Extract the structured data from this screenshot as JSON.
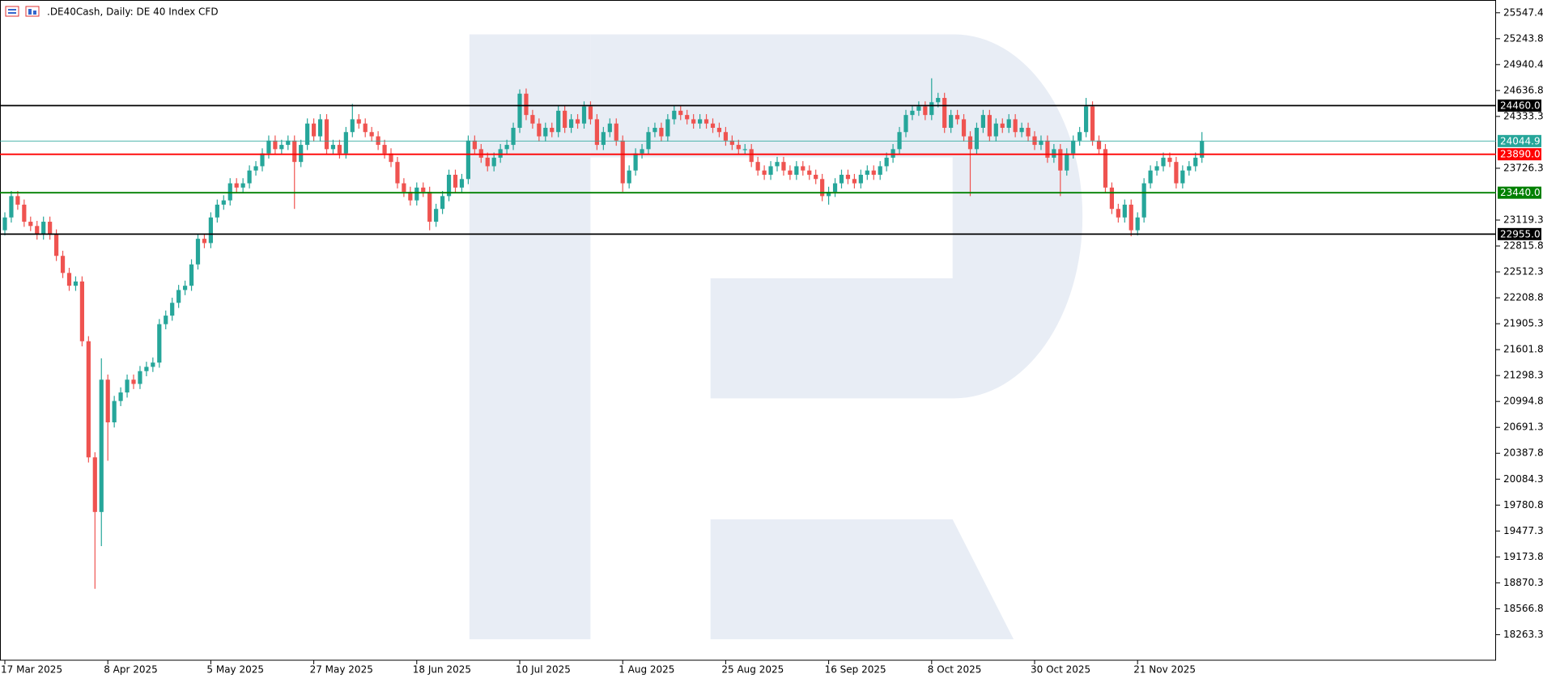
{
  "chart_data": {
    "type": "candlestick",
    "title": ".DE40Cash, Daily:  DE 40 Index CFD",
    "categories": [
      "17 Mar 2025",
      null,
      null,
      null,
      null,
      null,
      null,
      null,
      null,
      null,
      null,
      null,
      null,
      null,
      null,
      null,
      "8 Apr 2025",
      null,
      null,
      null,
      null,
      null,
      null,
      null,
      null,
      null,
      null,
      null,
      null,
      null,
      null,
      null,
      "5 May 2025",
      null,
      null,
      null,
      null,
      null,
      null,
      null,
      null,
      null,
      null,
      null,
      null,
      null,
      null,
      null,
      "27 May 2025",
      null,
      null,
      null,
      null,
      null,
      null,
      null,
      null,
      null,
      null,
      null,
      null,
      null,
      null,
      null,
      "18 Jun 2025",
      null,
      null,
      null,
      null,
      null,
      null,
      null,
      null,
      null,
      null,
      null,
      null,
      null,
      null,
      null,
      "10 Jul 2025",
      null,
      null,
      null,
      null,
      null,
      null,
      null,
      null,
      null,
      null,
      null,
      null,
      null,
      null,
      null,
      "1 Aug 2025",
      null,
      null,
      null,
      null,
      null,
      null,
      null,
      null,
      null,
      null,
      null,
      null,
      null,
      null,
      null,
      "25 Aug 2025",
      null,
      null,
      null,
      null,
      null,
      null,
      null,
      null,
      null,
      null,
      null,
      null,
      null,
      null,
      null,
      "16 Sep 2025",
      null,
      null,
      null,
      null,
      null,
      null,
      null,
      null,
      null,
      null,
      null,
      null,
      null,
      null,
      null,
      "8 Oct 2025",
      null,
      null,
      null,
      null,
      null,
      null,
      null,
      null,
      null,
      null,
      null,
      null,
      null,
      null,
      null,
      "30 Oct 2025",
      null,
      null,
      null,
      null,
      null,
      null,
      null,
      null,
      null,
      null,
      null,
      null,
      null,
      null,
      null,
      "21 Nov 2025",
      null,
      null,
      null,
      null,
      null,
      null,
      null,
      null,
      null,
      null
    ],
    "open": [
      23000,
      23150,
      23400,
      23300,
      23100,
      23050,
      22950,
      23100,
      22950,
      22700,
      22500,
      22350,
      22400,
      21700,
      20340,
      19700,
      21250,
      20750,
      21000,
      21100,
      21250,
      21200,
      21350,
      21400,
      21450,
      21900,
      22000,
      22150,
      22300,
      22350,
      22600,
      22900,
      22850,
      23150,
      23300,
      23350,
      23550,
      23500,
      23550,
      23700,
      23750,
      23900,
      24050,
      23950,
      24000,
      24050,
      23800,
      24000,
      24250,
      24100,
      24300,
      23950,
      24000,
      23900,
      24150,
      24300,
      24250,
      24150,
      24100,
      24000,
      23900,
      23800,
      23550,
      23450,
      23350,
      23500,
      23450,
      23100,
      23250,
      23400,
      23650,
      23500,
      23600,
      24050,
      23950,
      23850,
      23750,
      23850,
      23950,
      24000,
      24200,
      24600,
      24350,
      24250,
      24100,
      24200,
      24150,
      24400,
      24200,
      24300,
      24250,
      24450,
      24300,
      24000,
      24150,
      24250,
      24050,
      23550,
      23700,
      23900,
      23950,
      24150,
      24200,
      24100,
      24300,
      24400,
      24350,
      24300,
      24250,
      24300,
      24250,
      24200,
      24150,
      24050,
      24000,
      23950,
      23950,
      23800,
      23700,
      23650,
      23750,
      23800,
      23700,
      23650,
      23750,
      23700,
      23650,
      23600,
      23400,
      23450,
      23550,
      23650,
      23600,
      23550,
      23650,
      23700,
      23650,
      23750,
      23850,
      23950,
      24150,
      24350,
      24400,
      24450,
      24350,
      24500,
      24550,
      24200,
      24350,
      24300,
      24100,
      23950,
      24200,
      24350,
      24100,
      24250,
      24200,
      24300,
      24150,
      24200,
      24100,
      24000,
      24050,
      23850,
      23950,
      23700,
      23900,
      24050,
      24150,
      24450,
      24050,
      23950,
      23500,
      23250,
      23150,
      23300,
      23000,
      23150,
      23550,
      23700,
      23750,
      23850,
      23800,
      23550,
      23700,
      23750,
      23850
    ],
    "high": [
      23210,
      23460,
      23460,
      23360,
      23160,
      23110,
      23160,
      23160,
      23010,
      22760,
      22560,
      22460,
      22460,
      21760,
      20400,
      21500,
      21310,
      21060,
      21160,
      21310,
      21310,
      21410,
      21460,
      21510,
      21960,
      22060,
      22210,
      22360,
      22410,
      22660,
      22960,
      22960,
      23210,
      23360,
      23410,
      23610,
      23610,
      23610,
      23760,
      23810,
      23960,
      24110,
      24110,
      24060,
      24110,
      24110,
      24060,
      24310,
      24310,
      24360,
      24360,
      24060,
      24060,
      24210,
      24480,
      24360,
      24310,
      24210,
      24160,
      24060,
      23960,
      23860,
      23610,
      23510,
      23560,
      23560,
      23510,
      23310,
      23460,
      23710,
      23710,
      23660,
      24110,
      24110,
      24010,
      23910,
      23910,
      24010,
      24060,
      24260,
      24650,
      24660,
      24410,
      24310,
      24260,
      24260,
      24460,
      24460,
      24360,
      24360,
      24510,
      24510,
      24360,
      24210,
      24310,
      24310,
      24110,
      23760,
      23960,
      24010,
      24210,
      24260,
      24260,
      24360,
      24460,
      24460,
      24410,
      24360,
      24360,
      24360,
      24310,
      24260,
      24210,
      24110,
      24060,
      24010,
      24010,
      23860,
      23760,
      23810,
      23860,
      23860,
      23760,
      23810,
      23810,
      23760,
      23710,
      23660,
      23510,
      23610,
      23710,
      23710,
      23660,
      23710,
      23760,
      23760,
      23810,
      23910,
      24010,
      24210,
      24410,
      24460,
      24510,
      24510,
      24780,
      24610,
      24610,
      24410,
      24410,
      24360,
      24160,
      24260,
      24410,
      24410,
      24310,
      24310,
      24360,
      24360,
      24260,
      24260,
      24160,
      24110,
      24110,
      24010,
      24010,
      23960,
      24110,
      24210,
      24550,
      24510,
      24110,
      24010,
      23560,
      23310,
      23360,
      23360,
      23210,
      23610,
      23760,
      23810,
      23910,
      23910,
      23860,
      23760,
      23810,
      23910,
      24150
    ],
    "low": [
      22940,
      23090,
      23240,
      23040,
      22990,
      22890,
      22890,
      22890,
      22640,
      22440,
      22290,
      22290,
      21640,
      20280,
      18800,
      19300,
      20300,
      20690,
      20940,
      21040,
      21140,
      21140,
      21290,
      21340,
      21390,
      21840,
      21940,
      22090,
      22240,
      22290,
      22540,
      22790,
      22790,
      23090,
      23240,
      23290,
      23440,
      23440,
      23490,
      23640,
      23690,
      23840,
      23890,
      23890,
      23940,
      23250,
      23740,
      23940,
      24040,
      24040,
      23890,
      23890,
      23840,
      23840,
      24090,
      24190,
      24090,
      24040,
      23940,
      23840,
      23740,
      23490,
      23390,
      23290,
      23290,
      23390,
      23000,
      23040,
      23190,
      23340,
      23440,
      23440,
      23540,
      23890,
      23790,
      23690,
      23690,
      23790,
      23890,
      23940,
      24140,
      24290,
      24190,
      24040,
      24040,
      24090,
      24090,
      24140,
      24140,
      24190,
      24190,
      24240,
      23940,
      23940,
      24090,
      23990,
      23450,
      23490,
      23640,
      23840,
      23890,
      24090,
      24040,
      24040,
      24240,
      24290,
      24240,
      24190,
      24190,
      24190,
      24140,
      24090,
      23990,
      23940,
      23890,
      23890,
      23740,
      23640,
      23590,
      23590,
      23690,
      23640,
      23590,
      23590,
      23640,
      23590,
      23540,
      23340,
      23300,
      23390,
      23490,
      23540,
      23490,
      23490,
      23590,
      23590,
      23590,
      23690,
      23790,
      23890,
      24090,
      24290,
      24340,
      24290,
      24290,
      24440,
      24140,
      24140,
      24240,
      24040,
      23400,
      23890,
      24140,
      24040,
      24040,
      24140,
      24140,
      24090,
      24090,
      24040,
      23940,
      23940,
      23790,
      23790,
      23400,
      23640,
      23840,
      23990,
      24090,
      23990,
      23890,
      23440,
      23190,
      23090,
      23090,
      22930,
      22940,
      23090,
      23490,
      23640,
      23690,
      23740,
      23490,
      23490,
      23640,
      23690,
      23790
    ],
    "close": [
      23150,
      23400,
      23300,
      23100,
      23050,
      22950,
      23100,
      22950,
      22700,
      22500,
      22350,
      22400,
      21700,
      20340,
      19700,
      21250,
      20750,
      21000,
      21100,
      21250,
      21200,
      21350,
      21400,
      21450,
      21900,
      22000,
      22150,
      22300,
      22350,
      22600,
      22900,
      22850,
      23150,
      23300,
      23350,
      23550,
      23500,
      23550,
      23700,
      23750,
      23900,
      24050,
      23950,
      24000,
      24050,
      23800,
      24000,
      24250,
      24100,
      24300,
      23950,
      24000,
      23900,
      24150,
      24300,
      24250,
      24150,
      24100,
      24000,
      23900,
      23800,
      23550,
      23450,
      23350,
      23500,
      23450,
      23100,
      23250,
      23400,
      23650,
      23500,
      23600,
      24050,
      23950,
      23850,
      23750,
      23850,
      23950,
      24000,
      24200,
      24600,
      24350,
      24250,
      24100,
      24200,
      24150,
      24400,
      24200,
      24300,
      24250,
      24450,
      24300,
      24000,
      24150,
      24250,
      24050,
      23550,
      23700,
      23900,
      23950,
      24150,
      24200,
      24100,
      24300,
      24400,
      24350,
      24300,
      24250,
      24300,
      24250,
      24200,
      24150,
      24050,
      24000,
      23950,
      23950,
      23800,
      23700,
      23650,
      23750,
      23800,
      23700,
      23650,
      23750,
      23700,
      23650,
      23600,
      23400,
      23450,
      23550,
      23650,
      23600,
      23550,
      23650,
      23700,
      23650,
      23750,
      23850,
      23950,
      24150,
      24350,
      24400,
      24450,
      24350,
      24500,
      24550,
      24200,
      24350,
      24300,
      24100,
      23950,
      24200,
      24350,
      24100,
      24250,
      24200,
      24300,
      24150,
      24200,
      24100,
      24000,
      24050,
      23850,
      23950,
      23700,
      23900,
      24050,
      24150,
      24450,
      24050,
      23950,
      23500,
      23250,
      23150,
      23300,
      23000,
      23150,
      23550,
      23700,
      23750,
      23850,
      23800,
      23550,
      23700,
      23750,
      23850,
      24044.9
    ],
    "up_color": "#26a69a",
    "down_color": "#ef5350",
    "ylim": [
      17964,
      25697
    ],
    "yticks": [
      25547.4,
      25243.8,
      24940.4,
      24636.8,
      24333.3,
      23726.3,
      23119.3,
      22815.8,
      22512.3,
      22208.8,
      21905.3,
      21601.8,
      21298.3,
      20994.8,
      20691.3,
      20387.8,
      20084.3,
      19780.8,
      19477.3,
      19173.8,
      18870.3,
      18566.8,
      18263.3
    ],
    "levels": [
      {
        "value": 24460,
        "label": "24460.0",
        "color": "#000000"
      },
      {
        "value": 24044.9,
        "color": "#26a69a"
      },
      {
        "value": 23890,
        "label": "23890.0",
        "color": "#ff0000"
      },
      {
        "value": 23440,
        "label": "23440.0",
        "color": "#008000"
      },
      {
        "value": 22955,
        "label": "22955.0",
        "color": "#000000"
      }
    ],
    "grid": false
  }
}
